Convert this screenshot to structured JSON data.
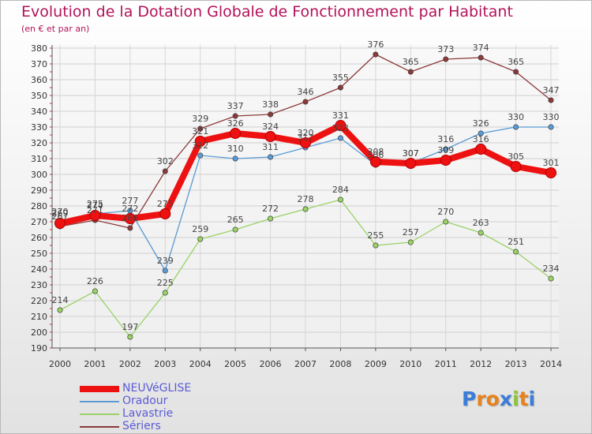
{
  "header": {
    "title": "Evolution de la Dotation Globale de Fonctionnement par Habitant",
    "subtitle": "(en € et par an)"
  },
  "logo": {
    "letters": [
      "P",
      "r",
      "o",
      "x",
      "i",
      "t",
      "i"
    ],
    "colors": [
      "#3b7dd8",
      "#e8821a",
      "#e8821a",
      "#3b7dd8",
      "#8cc63f",
      "#e8821a",
      "#3b7dd8"
    ]
  },
  "chart_data": {
    "type": "line",
    "title": "Evolution de la Dotation Globale de Fonctionnement par Habitant",
    "subtitle": "(en € et par an)",
    "xlabel": "",
    "ylabel": "",
    "x": [
      "2000",
      "2001",
      "2002",
      "2003",
      "2004",
      "2005",
      "2006",
      "2007",
      "2008",
      "2009",
      "2010",
      "2011",
      "2012",
      "2013",
      "2014"
    ],
    "ylim": [
      190,
      380
    ],
    "yticks": [
      190,
      200,
      210,
      220,
      230,
      240,
      250,
      260,
      270,
      280,
      290,
      300,
      310,
      320,
      330,
      340,
      350,
      360,
      370,
      380
    ],
    "grid": true,
    "legend_position": "bottom-left",
    "series": [
      {
        "name": "NEUVéGLISE",
        "color": "#ee1111",
        "values": [
          269,
          274,
          272,
          275,
          321,
          326,
          324,
          320,
          331,
          308,
          307,
          309,
          316,
          305,
          301
        ],
        "labels": [
          "269",
          "274",
          "272",
          "275",
          "321",
          "326",
          "324",
          "320",
          "331",
          "308",
          "307",
          "309",
          "316",
          "305",
          "301"
        ]
      },
      {
        "name": "Oradour",
        "color": "#5b9bd5",
        "values": [
          270,
          275,
          277,
          239,
          312,
          310,
          311,
          317,
          323,
          306,
          307,
          316,
          326,
          330,
          330
        ],
        "labels": [
          "270",
          "275",
          "277",
          "239",
          "312",
          "310",
          "311",
          "317",
          "323",
          "306",
          "307",
          "316",
          "326",
          "330",
          "330"
        ]
      },
      {
        "name": "Lavastrie",
        "color": "#99d266",
        "values": [
          214,
          226,
          197,
          225,
          259,
          265,
          272,
          278,
          284,
          255,
          257,
          270,
          263,
          251,
          234
        ],
        "labels": [
          "214",
          "226",
          "197",
          "225",
          "259",
          "265",
          "272",
          "278",
          "284",
          "255",
          "257",
          "270",
          "263",
          "251",
          "234"
        ]
      },
      {
        "name": "Sériers",
        "color": "#8b3a3a",
        "values": [
          267,
          271,
          266,
          302,
          329,
          337,
          338,
          346,
          355,
          376,
          365,
          373,
          374,
          365,
          347
        ],
        "labels": [
          "267",
          "271",
          "266",
          "302",
          "329",
          "337",
          "338",
          "346",
          "355",
          "376",
          "365",
          "373",
          "374",
          "365",
          "347"
        ]
      }
    ]
  }
}
